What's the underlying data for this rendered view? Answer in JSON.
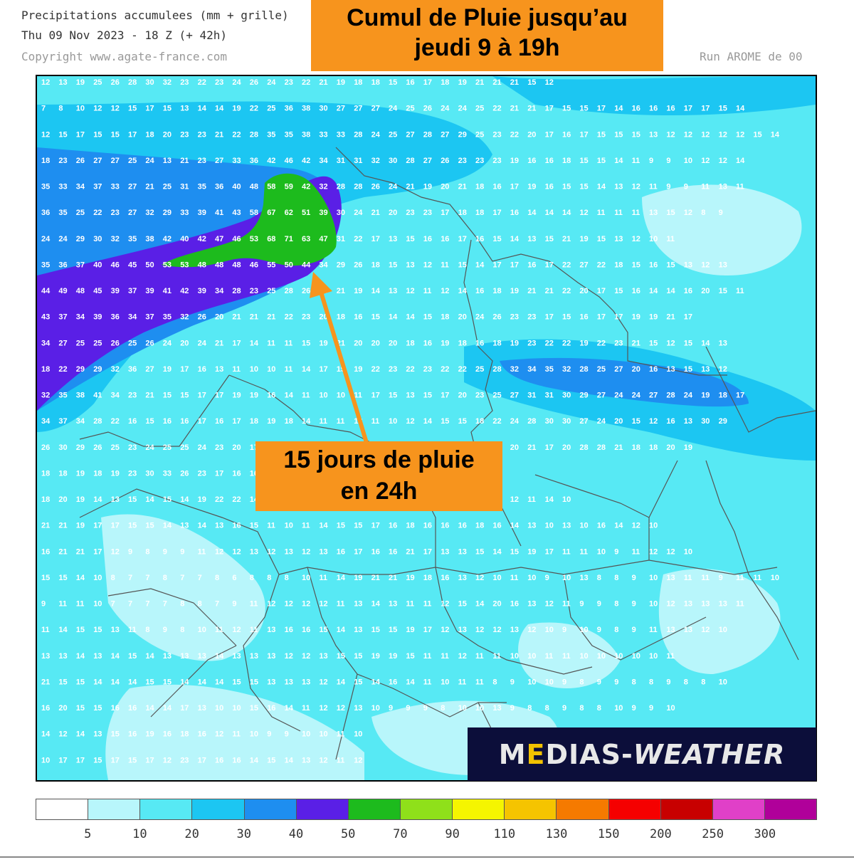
{
  "header": {
    "line1": "Precipitations accumulees (mm + grille)",
    "line2": "Thu 09 Nov 2023 - 18 Z (+ 42h)",
    "line3": "Copyright www.agate-france.com",
    "run": "Run AROME de 00"
  },
  "title": {
    "line1": "Cumul de Pluie jusqu’au",
    "line2": "jeudi 9 à 19h"
  },
  "callout": {
    "line1": "15 jours de pluie",
    "line2": "en 24h"
  },
  "brand": {
    "prefix_start": "M",
    "prefix_e": "E",
    "prefix_rest": "DIAS-",
    "suffix": "WEATHER"
  },
  "colors": {
    "arrow": "#f7941d",
    "label_box": "#f7941d",
    "brand_bg": "#0c0e3a"
  },
  "legend": {
    "labels": [
      "5",
      "10",
      "20",
      "30",
      "40",
      "50",
      "70",
      "90",
      "110",
      "130",
      "150",
      "200",
      "250",
      "300"
    ],
    "colors": [
      "#ffffff",
      "#b8f6fb",
      "#57e9f4",
      "#1cc6f2",
      "#1e8ef0",
      "#5a1fe6",
      "#1dbb1d",
      "#8fe01a",
      "#f5f500",
      "#f5c400",
      "#f57a00",
      "#f50000",
      "#c80000",
      "#e040c8",
      "#b0009a"
    ]
  },
  "grid_values": [
    "12 13 19 25 26 28 30 32 23 22 23 24 26 24 23 22 21 19 18 18 15 16 17 18 19 21 21 21 15 12",
    "7 8 10 12 12 15 17 15 13 14 14 19 22 25 36 38 30 27 27 27 24 25 26 24 24 25 22 21 21 17 15 15 17 14 16 16 16 17 17 15 14",
    "12 15 17 15 15 17 18 20 23 23 21 22 28 35 35 38 33 33 28 24 25 27 28 27 29 25 23 22 20 17 16 17 15 15 15 13 12 12 12 12 12 15 14",
    "18 23 26 27 27 25 24 13 21 23 27 33 36 42 46 42 34 31 31 32 30 28 27 26 23 23 23 19 16 16 18 15 15 14 11 9 9 10 12 12 14",
    "35 33 34 37 33 27 21 25 31 35 36 40 48 58 59 42 32 28 28 26 24 21 19 20 21 18 16 17 19 16 15 15 14 13 12 11 9 9 11 13 11",
    "36 35 25 22 23 27 32 29 33 39 41 43 58 67 62 51 39 30 24 21 20 23 23 17 18 18 17 16 14 14 14 12 11 11 11 13 15 12 8 9",
    "24 24 29 30 32 35 38 42 40 42 47 46 53 68 71 63 47 31 22 17 13 15 16 16 17 16 15 14 13 15 21 19 15 13 12 10 11",
    "35 36 37 40 46 45 50 53 53 48 48 48 46 55 50 44 34 29 26 18 15 13 12 11 15 14 17 17 16 17 22 27 22 18 15 16 15 13 12 13",
    "44 49 48 45 39 37 39 41 42 39 34 28 23 25 28 26 25 21 19 14 13 12 11 12 14 16 18 19 21 21 22 20 17 15 16 14 14 16 20 15 11",
    "43 37 34 39 36 34 37 35 32 26 20 21 21 21 22 23 20 18 16 15 14 14 15 18 20 24 26 23 23 17 15 16 17 17 19 19 21 17",
    "34 27 25 25 26 25 26 24 20 24 21 17 14 11 11 15 19 21 20 20 20 18 16 19 18 16 18 19 23 22 22 19 22 23 21 15 12 15 14 13",
    "18 22 29 29 32 36 27 19 17 16 13 11 10 10 11 14 17 19 19 22 23 22 23 22 22 25 28 32 34 35 32 28 25 27 20 16 13 15 13 12",
    "32 35 38 41 34 23 21 15 15 17 17 19 19 16 14 11 10 10 11 17 15 13 15 17 20 23 25 27 31 31 30 29 27 24 24 27 28 24 19 18 17",
    "34 37 34 28 22 16 15 16 16 17 16 17 18 19 18 14 11 11 13 11 10 12 14 15 15 18 22 24 28 30 30 27 24 20 15 12 16 13 30 29",
    "26 30 29 26 25 23 24 25 25 24 23 20 17 16 15 17 14 13 12 15 14 17 17 14 13 12 15 20 21 17 20 28 28 21 18 18 20 19",
    "18 18 19 18 19 23 30 33 26 23 17 16 16 15 15 14 15 18 17 16 15 14 20 25 22 18 18",
    "18 20 19 14 13 15 14 15 14 19 22 22 14 13 13 14 12 12 11 12 13 14 15 13 14 13 12 12 11 14 10",
    "21 21 19 17 17 15 15 14 13 14 13 16 15 11 10 11 14 15 15 17 16 18 16 16 16 18 16 14 13 10 13 10 16 14 12 10",
    "16 21 21 17 12 9 8 9 9 11 12 12 13 12 13 12 13 16 17 16 16 21 17 13 13 15 14 15 19 17 11 11 10 9 11 12 12 10",
    "15 15 14 10 8 7 7 8 7 7 8 6 8 8 8 10 11 14 19 21 21 19 18 16 13 12 10 11 10 9 10 13 8 8 9 10 13 11 11 9 11 11 10",
    "9 11 11 10 7 7 7 7 8 8 7 9 11 12 12 12 12 11 13 14 13 11 11 12 15 14 20 16 13 12 11 9 9 8 9 10 12 13 13 13 11",
    "11 14 15 15 13 11 8 9 8 10 11 12 11 13 16 16 15 14 13 15 15 19 17 12 13 12 12 13 12 10 9 10 9 8 9 11 13 13 12 10",
    "13 13 14 13 14 15 14 13 13 13 14 13 13 13 12 12 13 15 15 19 19 15 11 11 12 11 11 10 10 11 11 10 10 10 10 10 11",
    "21 15 15 14 14 14 15 15 14 14 14 15 15 13 13 13 12 14 15 14 16 14 11 10 11 11 8 9 10 10 9 8 9 9 8 8 9 8 8 10",
    "16 20 15 15 16 16 14 14 17 13 10 10 15 16 14 11 12 12 13 10 9 9 9 8 10 10 13 9 8 8 9 8 8 10 9 9 10",
    "14 12 14 13 15 16 19 16 18 16 12 11 10 9 9 10 10 11 10",
    "10 17 17 15 17 15 17 12 23 17 16 16 14 15 14 13 12 11 12"
  ]
}
